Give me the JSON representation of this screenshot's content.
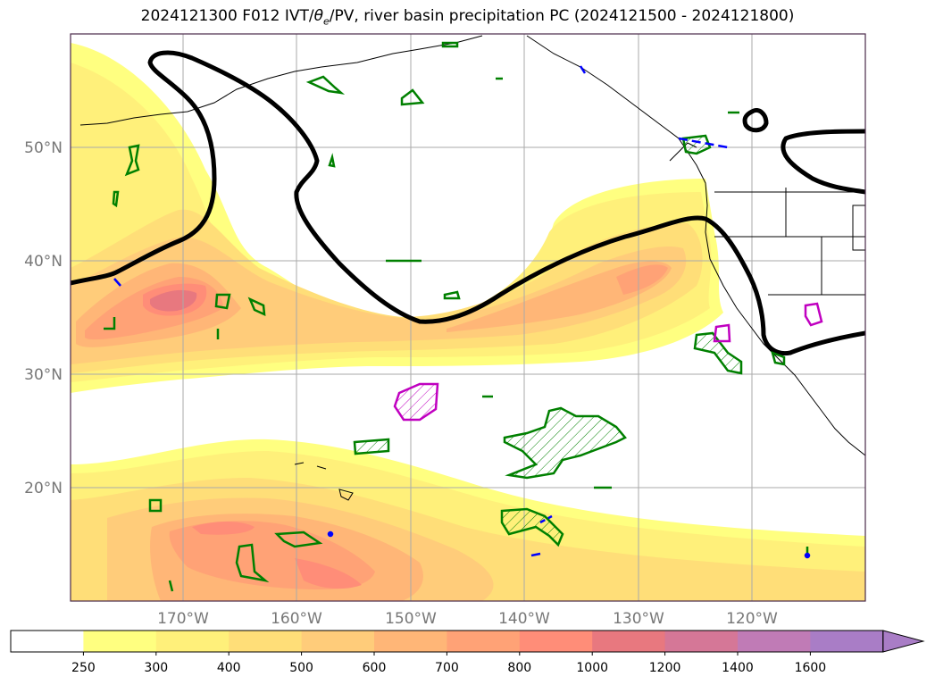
{
  "title": "2024121300 F012 IVT/θe/PV, river basin precipitation PC (2024121500 - 2024121800)",
  "title_parts": {
    "prefix": "2024121300 F012 IVT/",
    "theta": "θ",
    "sub": "e",
    "suffix": "/PV, river basin precipitation PC (2024121500 - 2024121800)"
  },
  "lat_labels": [
    "50°N",
    "40°N",
    "30°N",
    "20°N"
  ],
  "lon_labels": [
    "170°W",
    "160°W",
    "150°W",
    "140°W",
    "130°W",
    "120°W"
  ],
  "colorbar": {
    "labels": [
      "250",
      "300",
      "400",
      "500",
      "600",
      "700",
      "800",
      "1000",
      "1200",
      "1400",
      "1600"
    ],
    "colors": [
      "#ffffff",
      "#ffff80",
      "#fff07a",
      "#ffde78",
      "#ffcc7a",
      "#ffb677",
      "#ffa276",
      "#ff8d78",
      "#e8787f",
      "#d57797",
      "#c07bb6",
      "#a97dc6"
    ],
    "extend": "max"
  },
  "colors": {
    "frame": "#4a2a4a",
    "pv_contour": "#000000",
    "theta_green": "#008000",
    "theta_blue": "#0000ff",
    "theta_magenta": "#c000c0",
    "grid": "#aaaaaa"
  }
}
